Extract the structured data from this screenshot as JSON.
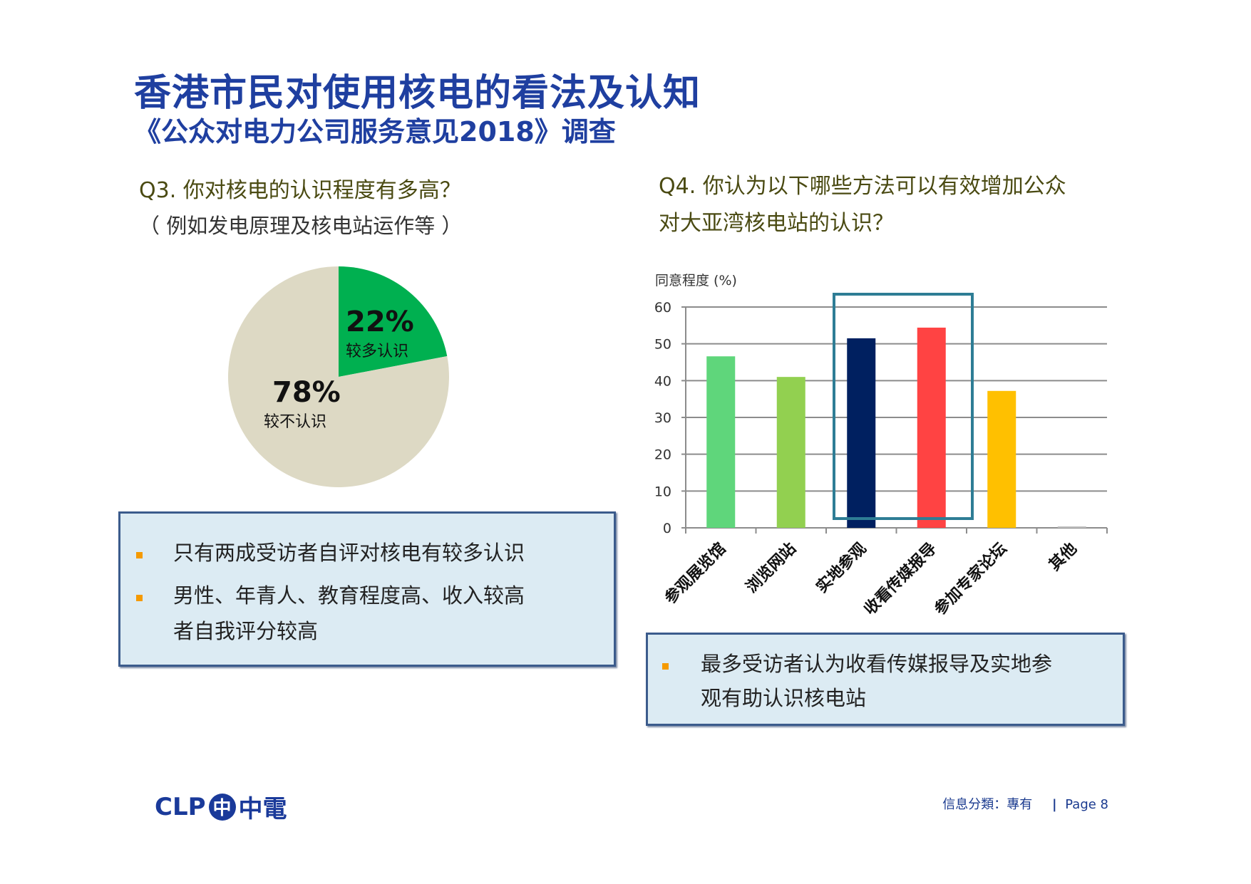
{
  "header": {
    "title": "香港市民对使用核电的看法及认知",
    "subtitle": "《公众对电力公司服务意见2018》调查"
  },
  "q3": {
    "question": "Q3. 你对核电的认识程度有多高？",
    "note": "（ 例如发电原理及核电站运作等 ）",
    "bullets": [
      "只有两成受访者自评对核电有较多认识",
      "男性、年青人、教育程度高、收入较高",
      "者自我评分较高"
    ]
  },
  "q4": {
    "question_line1": "Q4. 你认为以下哪些方法可以有效增加公众",
    "question_line2": "对大亚湾核电站的认识？",
    "bullets": [
      "最多受访者认为收看传媒报导及实地参",
      "观有助认识核电站"
    ]
  },
  "footer": {
    "logo_text": "CLP",
    "logo_mark": "中",
    "logo_cn": "中電",
    "classification": "信息分類：專有",
    "page": "Page 8"
  },
  "colors": {
    "accent": "#1f3fa0",
    "highlight": "#2e7d95",
    "bullet": "#f59a00"
  },
  "chart_data": [
    {
      "type": "pie",
      "title": "Q3. 你对核电的认识程度有多高？",
      "slices": [
        {
          "label": "较多认识",
          "value": 22,
          "value_label": "22%",
          "color": "#00b050"
        },
        {
          "label": "较不认识",
          "value": 78,
          "value_label": "78%",
          "color": "#ddd9c4"
        }
      ]
    },
    {
      "type": "bar",
      "title": "Q4. 你认为以下哪些方法可以有效增加公众对大亚湾核电站的认识？",
      "ylabel": "同意程度 (%)",
      "ylim": [
        0,
        60
      ],
      "yticks": [
        "0",
        "10",
        "20",
        "30",
        "40",
        "50",
        "60"
      ],
      "grid": true,
      "categories": [
        "参观展览馆",
        "浏览网站",
        "实地参观",
        "收看传媒报导",
        "参加专家论坛",
        "其他"
      ],
      "values": [
        46.6,
        41.0,
        51.5,
        54.4,
        37.2,
        0.4
      ],
      "colors": [
        "#5fd67b",
        "#92d050",
        "#002060",
        "#ff4343",
        "#ffc000",
        "#bfbfbf"
      ],
      "highlighted": [
        "实地参观",
        "收看传媒报导"
      ]
    }
  ]
}
